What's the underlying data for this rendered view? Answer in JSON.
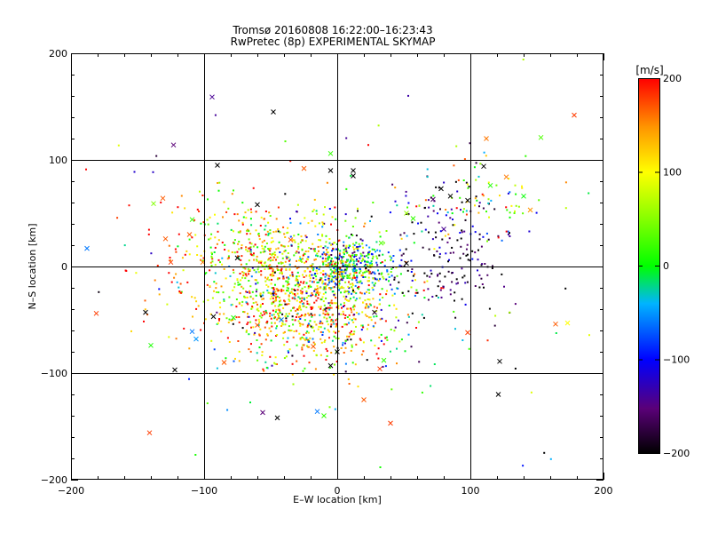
{
  "chart_data": {
    "type": "scatter",
    "title": "Tromsø 20160808 16:22:00–16:23:43",
    "subtitle": "RwPretec (8p) EXPERIMENTAL SKYMAP",
    "xlabel": "E–W location [km]",
    "ylabel": "N–S location [km]",
    "xlim": [
      -200,
      200
    ],
    "ylim": [
      -200,
      200
    ],
    "xticks": [
      "−200",
      "−100",
      "0",
      "100",
      "200"
    ],
    "yticks": [
      "−200",
      "−100",
      "0",
      "100",
      "200"
    ],
    "xtick_values": [
      -200,
      -100,
      0,
      100,
      200
    ],
    "ytick_values": [
      -200,
      -100,
      0,
      100,
      200
    ],
    "grid": true,
    "colorbar": {
      "unit_label": "[m/s]",
      "range": [
        -200,
        200
      ],
      "tick_values": [
        200,
        100,
        0,
        -100,
        -200
      ],
      "tick_labels": [
        "200",
        "100",
        "0",
        "−100",
        "−200"
      ]
    },
    "cross_markers": [
      {
        "x": -94,
        "y": 159,
        "v": -140
      },
      {
        "x": -123,
        "y": 114,
        "v": -150
      },
      {
        "x": -90,
        "y": 95,
        "v": -200
      },
      {
        "x": -48,
        "y": 145,
        "v": -200
      },
      {
        "x": -25,
        "y": 92,
        "v": 170
      },
      {
        "x": -5,
        "y": 90,
        "v": -200
      },
      {
        "x": -5,
        "y": 106,
        "v": 20
      },
      {
        "x": 12,
        "y": 90,
        "v": -200
      },
      {
        "x": 112,
        "y": 120,
        "v": 160
      },
      {
        "x": 153,
        "y": 121,
        "v": 30
      },
      {
        "x": 178,
        "y": 142,
        "v": 180
      },
      {
        "x": 110,
        "y": 94,
        "v": -200
      },
      {
        "x": 127,
        "y": 84,
        "v": 160
      },
      {
        "x": 115,
        "y": 76,
        "v": 10
      },
      {
        "x": 140,
        "y": 66,
        "v": 0
      },
      {
        "x": 145,
        "y": 53,
        "v": 150
      },
      {
        "x": 78,
        "y": 73,
        "v": -200
      },
      {
        "x": 85,
        "y": 66,
        "v": -200
      },
      {
        "x": 72,
        "y": 63,
        "v": -160
      },
      {
        "x": 98,
        "y": 62,
        "v": -200
      },
      {
        "x": 80,
        "y": 35,
        "v": -140
      },
      {
        "x": 52,
        "y": 50,
        "v": 60
      },
      {
        "x": 57,
        "y": 45,
        "v": 20
      },
      {
        "x": -138,
        "y": 59,
        "v": 50
      },
      {
        "x": -131,
        "y": 64,
        "v": 170
      },
      {
        "x": -109,
        "y": 44,
        "v": 20
      },
      {
        "x": -129,
        "y": 26,
        "v": 170
      },
      {
        "x": -111,
        "y": 30,
        "v": 170
      },
      {
        "x": -125,
        "y": 4,
        "v": 180
      },
      {
        "x": -101,
        "y": 4,
        "v": 160
      },
      {
        "x": -188,
        "y": 17,
        "v": -60
      },
      {
        "x": -181,
        "y": -44,
        "v": 180
      },
      {
        "x": -144,
        "y": -43,
        "v": -200
      },
      {
        "x": -140,
        "y": -74,
        "v": 10
      },
      {
        "x": -122,
        "y": -97,
        "v": -200
      },
      {
        "x": -109,
        "y": -61,
        "v": -60
      },
      {
        "x": -106,
        "y": -68,
        "v": -50
      },
      {
        "x": -93,
        "y": -47,
        "v": -200
      },
      {
        "x": -141,
        "y": -156,
        "v": 180
      },
      {
        "x": -56,
        "y": -137,
        "v": -150
      },
      {
        "x": -45,
        "y": -142,
        "v": -200
      },
      {
        "x": -15,
        "y": -136,
        "v": -60
      },
      {
        "x": -10,
        "y": -140,
        "v": 20
      },
      {
        "x": -5,
        "y": -93,
        "v": -200
      },
      {
        "x": 0,
        "y": -80,
        "v": -200
      },
      {
        "x": 20,
        "y": -125,
        "v": 170
      },
      {
        "x": 32,
        "y": -96,
        "v": 180
      },
      {
        "x": 35,
        "y": -88,
        "v": 20
      },
      {
        "x": 40,
        "y": -147,
        "v": 180
      },
      {
        "x": 98,
        "y": -62,
        "v": 180
      },
      {
        "x": 122,
        "y": -89,
        "v": -200
      },
      {
        "x": 121,
        "y": -120,
        "v": -200
      },
      {
        "x": 164,
        "y": -54,
        "v": 170
      },
      {
        "x": 173,
        "y": -53,
        "v": 100
      },
      {
        "x": 52,
        "y": 3,
        "v": -200
      },
      {
        "x": 33,
        "y": 22,
        "v": 30
      },
      {
        "x": 28,
        "y": -43,
        "v": -180
      },
      {
        "x": -18,
        "y": -75,
        "v": 170
      },
      {
        "x": -42,
        "y": -50,
        "v": -60
      },
      {
        "x": -60,
        "y": -55,
        "v": 170
      },
      {
        "x": -78,
        "y": -48,
        "v": 10
      },
      {
        "x": -85,
        "y": -90,
        "v": 170
      },
      {
        "x": -35,
        "y": 25,
        "v": 170
      },
      {
        "x": -75,
        "y": 8,
        "v": -200
      },
      {
        "x": -60,
        "y": 58,
        "v": -200
      },
      {
        "x": 12,
        "y": 85,
        "v": -200
      }
    ],
    "dot_markers_summary": "approximately 2000 small colored dots densely scattered, concentrated between x −100…100 km and y −100…60 km with a dense cluster near (0, 0)"
  }
}
